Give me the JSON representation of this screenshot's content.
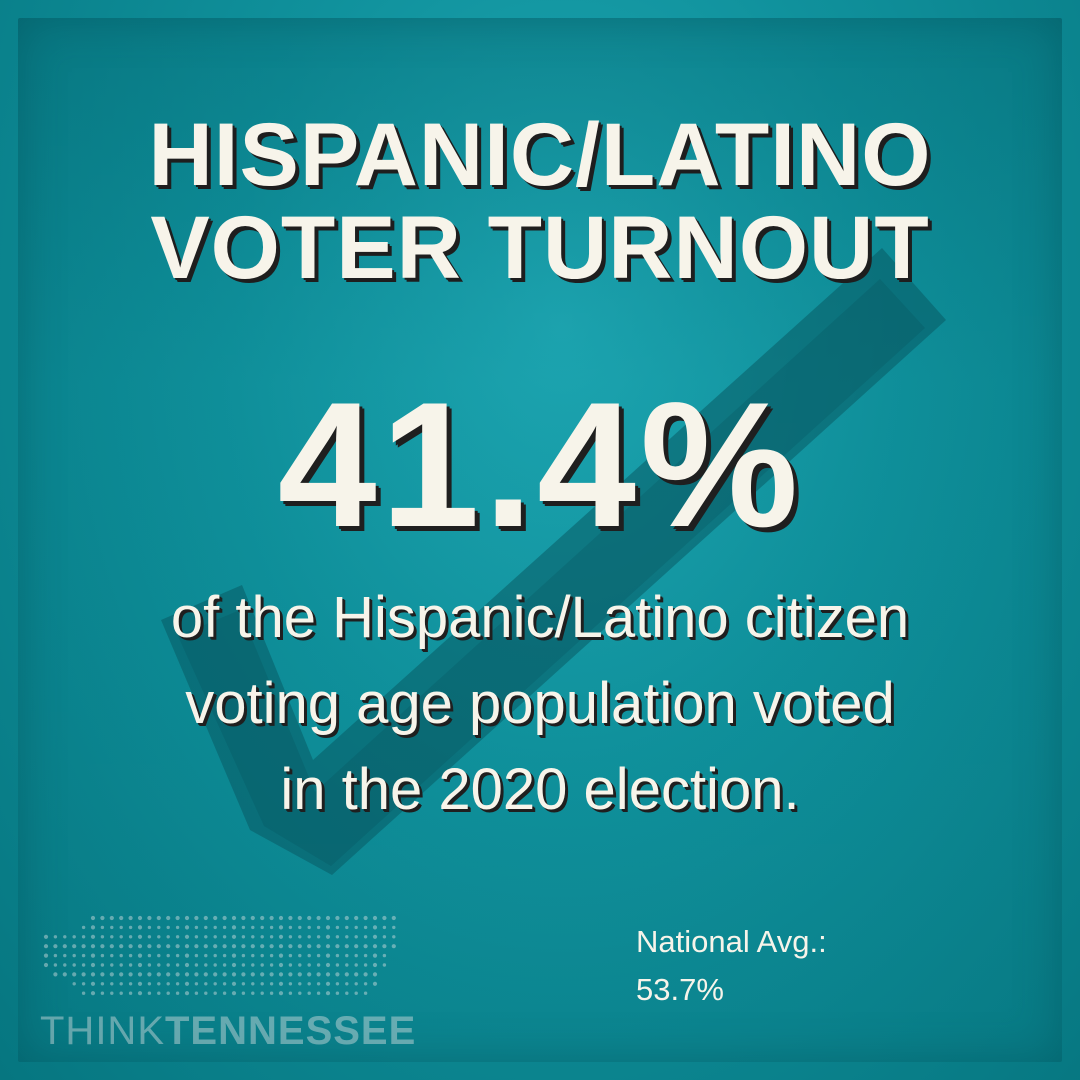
{
  "title": {
    "line_1": "HISPANIC/LATINO",
    "line_2": "VOTER TURNOUT"
  },
  "stat": {
    "value": "41.4%"
  },
  "description": {
    "line_1": "of the Hispanic/Latino citizen",
    "line_2": "voting age population voted",
    "line_3": "in the 2020 election."
  },
  "national": {
    "label": "National Avg.:",
    "value": "53.7%"
  },
  "logo": {
    "think": "THINK",
    "tennessee": "TENNESSEE"
  },
  "icons": {
    "background": "checkmark-icon",
    "logo": "tennessee-dot-map-icon"
  },
  "colors": {
    "background": "#0b8d98",
    "text": "#f7f4ea",
    "shadow": "#1e1e1e",
    "checkmark": "#0b5760"
  }
}
